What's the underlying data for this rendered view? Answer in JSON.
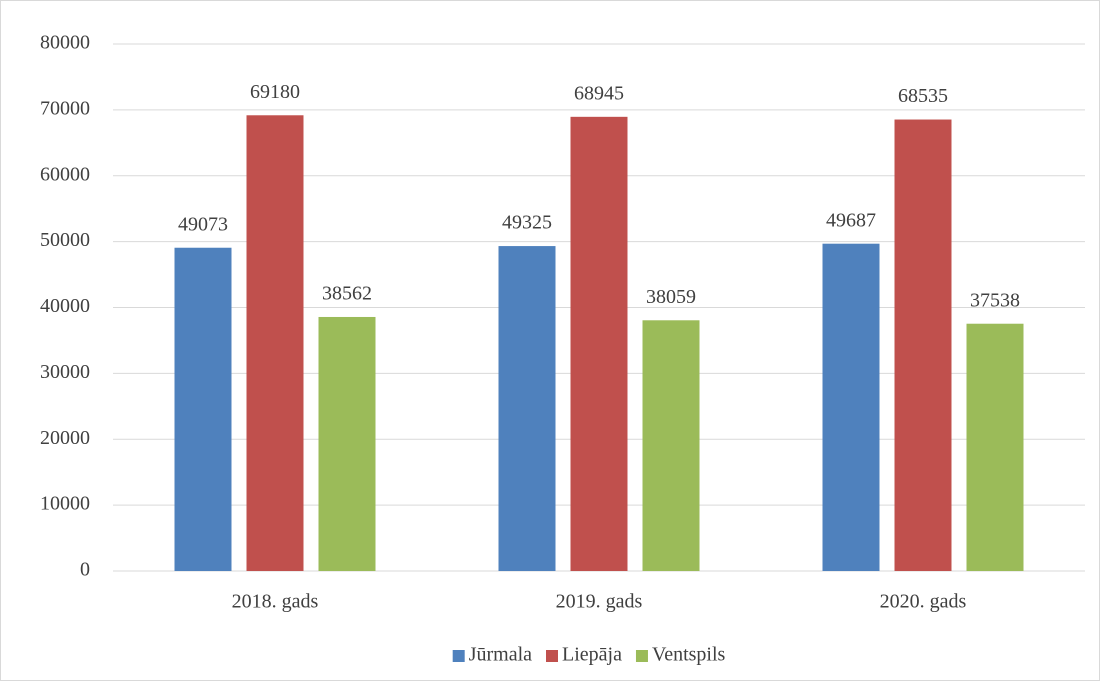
{
  "chart_data": {
    "type": "bar",
    "categories": [
      "2018. gads",
      "2019. gads",
      "2020. gads"
    ],
    "series": [
      {
        "name": "Jūrmala",
        "color": "#4f81bd",
        "values": [
          49073,
          49325,
          49687
        ]
      },
      {
        "name": "Liepāja",
        "color": "#c0504d",
        "values": [
          69180,
          68945,
          68535
        ]
      },
      {
        "name": "Ventspils",
        "color": "#9bbb59",
        "values": [
          38562,
          38059,
          37538
        ]
      }
    ],
    "ylim": [
      0,
      80000
    ],
    "yticks": [
      0,
      10000,
      20000,
      30000,
      40000,
      50000,
      60000,
      70000,
      80000
    ],
    "grid": true,
    "legend": "bottom"
  }
}
